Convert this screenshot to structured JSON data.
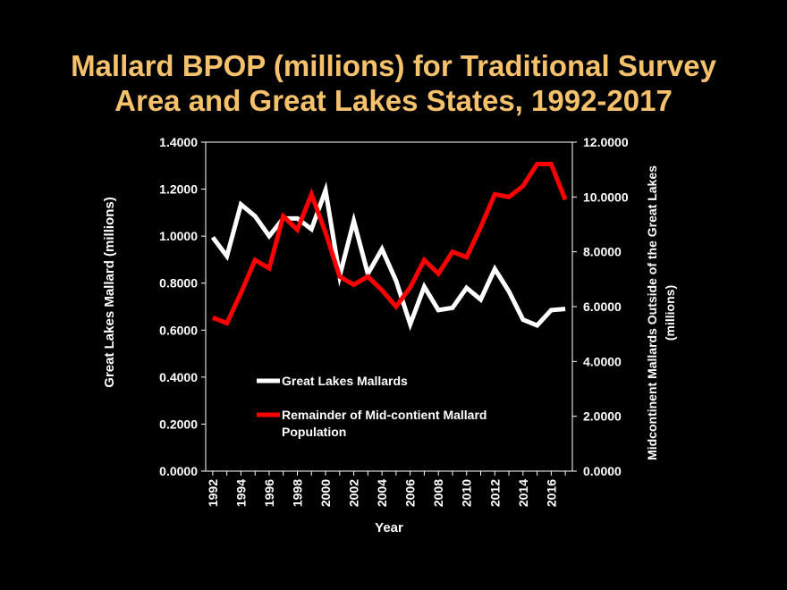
{
  "title_line1": "Mallard BPOP (millions) for Traditional Survey",
  "title_line2": "Area and Great Lakes States, 1992-2017",
  "colors": {
    "background": "#000000",
    "title": "#f5c26b",
    "axis": "#ffffff",
    "great_lakes": "#ffffff",
    "remainder": "#ff0000"
  },
  "chart_data": {
    "type": "line",
    "xlabel": "Year",
    "ylabel_left": "Great Lakes Mallard  (millions)",
    "ylabel_right_line1": "Midcontinent Mallards Outside of the Great Lakes",
    "ylabel_right_line2": "(millions)",
    "x": [
      1992,
      1993,
      1994,
      1995,
      1996,
      1997,
      1998,
      1999,
      2000,
      2001,
      2002,
      2003,
      2004,
      2005,
      2006,
      2007,
      2008,
      2009,
      2010,
      2011,
      2012,
      2013,
      2014,
      2015,
      2016,
      2017
    ],
    "x_ticks": [
      "1992",
      "1994",
      "1996",
      "1998",
      "2000",
      "2002",
      "2004",
      "2006",
      "2008",
      "2010",
      "2012",
      "2014",
      "2016"
    ],
    "ylim_left": [
      0,
      1.4
    ],
    "ylim_right": [
      0,
      12
    ],
    "left_ticks": [
      "0.0000",
      "0.2000",
      "0.4000",
      "0.6000",
      "0.8000",
      "1.0000",
      "1.2000",
      "1.4000"
    ],
    "right_ticks": [
      "0.0000",
      "2.0000",
      "4.0000",
      "6.0000",
      "8.0000",
      "10.0000",
      "12.0000"
    ],
    "legend_position": "bottom-left inside plot",
    "series": [
      {
        "name": "Great Lakes Mallards",
        "axis": "left",
        "color": "#ffffff",
        "values": [
          0.995,
          0.915,
          1.135,
          1.085,
          1.0,
          1.075,
          1.075,
          1.03,
          1.195,
          0.83,
          1.065,
          0.84,
          0.945,
          0.81,
          0.625,
          0.785,
          0.685,
          0.695,
          0.78,
          0.73,
          0.86,
          0.765,
          0.645,
          0.62,
          0.685,
          0.69
        ]
      },
      {
        "name_line1": "Remainder of Mid-contient Mallard",
        "name_line2": "Population",
        "axis": "right",
        "color": "#ff0000",
        "values": [
          5.6,
          5.4,
          6.5,
          7.7,
          7.4,
          9.3,
          8.8,
          10.1,
          8.7,
          7.1,
          6.8,
          7.1,
          6.6,
          6.0,
          6.7,
          7.7,
          7.2,
          8.0,
          7.8,
          8.9,
          10.1,
          10.0,
          10.4,
          11.2,
          11.2,
          9.9
        ]
      }
    ]
  }
}
